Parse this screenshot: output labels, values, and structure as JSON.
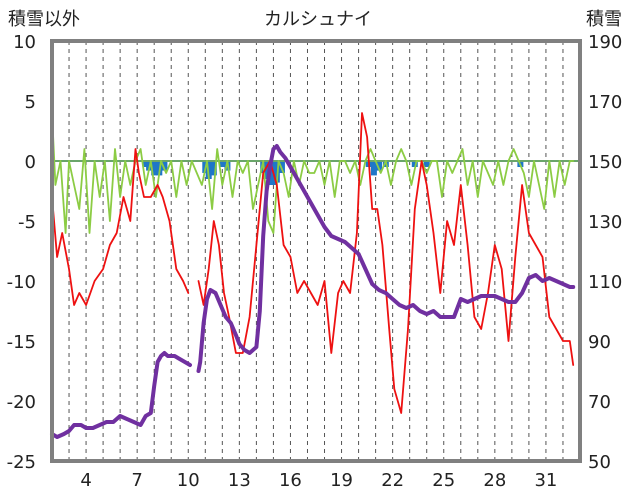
{
  "chart_data": {
    "type": "line",
    "title": "カルシュナイ",
    "left_axis_label": "積雪以外",
    "right_axis_label": "積雪",
    "left_ylim": [
      -25,
      10
    ],
    "left_yticks": [
      "10",
      "5",
      "0",
      "-5",
      "-10",
      "-15",
      "-20",
      "-25"
    ],
    "right_ylim": [
      50,
      190
    ],
    "right_yticks": [
      "190",
      "170",
      "150",
      "130",
      "110",
      "90",
      "70",
      "50"
    ],
    "xlim": [
      2,
      33
    ],
    "xticks": [
      "4",
      "7",
      "10",
      "13",
      "16",
      "19",
      "22",
      "25",
      "28",
      "31"
    ],
    "grid": "vertical-dashed",
    "colors": {
      "temperature": "#ee1111",
      "temp_change": "#8ccc44",
      "precip": "#1f77c8",
      "snow_depth": "#7030a0",
      "zero_line": "#6aa56a",
      "frame": "#808080"
    },
    "series": [
      {
        "axis": "left",
        "style": "line",
        "x": [
          2.0,
          2.3,
          2.6,
          3.0,
          3.3,
          3.6,
          4.0,
          4.5,
          5.0,
          5.4,
          5.8,
          6.2,
          6.6,
          6.9,
          7.1,
          7.4,
          7.8,
          8.2,
          8.5,
          8.9,
          9.3,
          9.7,
          10.0
        ],
        "y": [
          -3,
          -8,
          -6,
          -9,
          -12,
          -11,
          -12,
          -10,
          -9,
          -7,
          -6,
          -3,
          -5,
          1,
          -1,
          -3,
          -3,
          -2,
          -3,
          -5,
          -9,
          -10,
          -11
        ]
      },
      {
        "axis": "left",
        "style": "line",
        "x": [
          10.6,
          10.9,
          11.2,
          11.5,
          11.8,
          12.1,
          12.4,
          12.8,
          13.2,
          13.6,
          14.0,
          14.4,
          14.8,
          15.2,
          15.6,
          16.0,
          16.4,
          16.8,
          17.2,
          17.6,
          18.0,
          18.4,
          18.8,
          19.1,
          19.5,
          19.9,
          20.2,
          20.5,
          20.8,
          21.1,
          21.4,
          21.8,
          22.1,
          22.5,
          22.9,
          23.3,
          23.7,
          24.0,
          24.4,
          24.8,
          25.2,
          25.6,
          26.0,
          26.4,
          26.8,
          27.2,
          27.6,
          28.0,
          28.4,
          28.8,
          29.2,
          29.6,
          30.0,
          30.4,
          30.8,
          31.2,
          31.6,
          32.0,
          32.4,
          32.6
        ],
        "y": [
          -10,
          -12,
          -9,
          -5,
          -7,
          -11,
          -13,
          -16,
          -16,
          -13,
          -7,
          -1,
          0,
          -2,
          -7,
          -8,
          -11,
          -10,
          -11,
          -12,
          -10,
          -16,
          -11,
          -10,
          -11,
          -6,
          4,
          2,
          -4,
          -4,
          -7,
          -14,
          -19,
          -21,
          -14,
          -4,
          0,
          -2,
          -6,
          -11,
          -5,
          -7,
          -2,
          -7,
          -13,
          -14,
          -11,
          -7,
          -9,
          -15,
          -8,
          -2,
          -6,
          -7,
          -8,
          -13,
          -14,
          -15,
          -15,
          -17
        ]
      },
      {
        "axis": "left",
        "style": "line",
        "x": [
          2.0,
          2.2,
          2.5,
          2.8,
          3.0,
          3.3,
          3.6,
          3.9,
          4.2,
          4.5,
          4.8,
          5.1,
          5.4,
          5.7,
          6.0,
          6.3,
          6.6,
          6.9,
          7.2,
          7.5,
          7.8,
          8.1,
          8.4,
          8.7,
          9.0,
          9.3,
          9.6,
          9.9,
          10.2,
          10.5,
          10.8,
          11.1,
          11.4,
          11.7,
          12.0,
          12.3,
          12.6,
          12.9,
          13.2,
          13.5,
          13.8,
          14.1,
          14.4,
          14.7,
          15.0,
          15.3,
          15.6,
          15.9,
          16.2,
          16.5,
          16.8,
          17.1,
          17.4,
          17.7,
          18.0,
          18.3,
          18.6,
          18.9,
          19.2,
          19.5,
          19.8,
          20.1,
          20.4,
          20.7,
          21.0,
          21.3,
          21.6,
          21.9,
          22.2,
          22.5,
          22.8,
          23.1,
          23.4,
          23.7,
          24.0,
          24.3,
          24.6,
          24.9,
          25.2,
          25.5,
          25.8,
          26.1,
          26.4,
          26.7,
          27.0,
          27.3,
          27.6,
          27.9,
          28.2,
          28.5,
          28.8,
          29.1,
          29.4,
          29.7,
          30.0,
          30.3,
          30.6,
          30.9,
          31.2,
          31.5,
          31.8,
          32.1,
          32.4,
          32.6
        ],
        "y": [
          4,
          -2,
          0,
          -6,
          0,
          -2,
          -4,
          1,
          -6,
          0,
          -3,
          0,
          -5,
          1,
          -3,
          0,
          -2,
          0,
          1,
          -2,
          0,
          -3,
          0,
          -1,
          0,
          -3,
          0,
          -2,
          0,
          -1,
          -2,
          0,
          -4,
          1,
          -2,
          0,
          -3,
          0,
          -1,
          0,
          -4,
          -2,
          0,
          -5,
          -6,
          0,
          -1,
          -3,
          0,
          -2,
          0,
          -1,
          -1,
          0,
          -2,
          0,
          -3,
          0,
          0,
          -1,
          0,
          -2,
          0,
          1,
          0,
          -1,
          0,
          -2,
          0,
          1,
          0,
          -2,
          0,
          0,
          -1,
          0,
          0,
          -3,
          0,
          -1,
          0,
          1,
          -2,
          0,
          -3,
          0,
          -1,
          -2,
          0,
          -2,
          0,
          1,
          0,
          -1,
          -3,
          0,
          -2,
          -4,
          0,
          -3,
          0,
          -2,
          0,
          0
        ]
      },
      {
        "axis": "left",
        "style": "bar",
        "x": [
          7.5,
          7.7,
          8.0,
          8.3,
          8.6,
          11.0,
          11.2,
          11.5,
          12.0,
          12.3,
          14.4,
          14.6,
          14.8,
          15.0,
          15.2,
          15.5,
          20.6,
          20.9,
          21.2,
          21.6,
          23.3,
          24.0,
          29.5
        ],
        "y": [
          -0.5,
          -0.8,
          -1.2,
          -1.2,
          -0.8,
          -1.0,
          -1.5,
          -1.2,
          -0.5,
          -0.8,
          -1.0,
          -1.5,
          -2.0,
          -2.0,
          -1.8,
          -1.0,
          -0.5,
          -1.2,
          -0.8,
          -0.5,
          -0.5,
          -0.5,
          -0.5
        ]
      },
      {
        "axis": "right",
        "style": "line",
        "x": [
          2.0,
          2.3,
          2.7,
          3.0,
          3.3,
          3.7,
          4.0,
          4.4,
          4.8,
          5.2,
          5.6,
          6.0,
          6.4,
          6.8,
          7.2,
          7.5,
          7.8,
          8.0,
          8.2,
          8.4,
          8.6,
          8.8,
          9.0,
          9.2,
          9.5,
          9.8,
          10.1
        ],
        "y": [
          59,
          58,
          59,
          60,
          62,
          62,
          61,
          61,
          62,
          63,
          63,
          65,
          64,
          63,
          62,
          65,
          66,
          75,
          83,
          85,
          86,
          85,
          85,
          85,
          84,
          83,
          82
        ]
      },
      {
        "axis": "right",
        "style": "line",
        "x": [
          10.6,
          10.7,
          10.9,
          11.1,
          11.3,
          11.6,
          11.9,
          12.2,
          12.5,
          12.8,
          13.0,
          13.3,
          13.6,
          14.0,
          14.2,
          14.4,
          14.6,
          14.8,
          15.0,
          15.2,
          15.4,
          15.7,
          16.0,
          16.4,
          16.8,
          17.2,
          17.6,
          18.0,
          18.4,
          18.8,
          19.2,
          19.6,
          20.0,
          20.4,
          20.8,
          21.2,
          21.6,
          22.0,
          22.4,
          22.8,
          23.2,
          23.6,
          24.0,
          24.4,
          24.8,
          25.2,
          25.6,
          26.0,
          26.4,
          26.8,
          27.2,
          27.6,
          28.0,
          28.4,
          28.8,
          29.2,
          29.6,
          30.0,
          30.4,
          30.8,
          31.2,
          31.6,
          32.0,
          32.4,
          32.6
        ],
        "y": [
          80,
          83,
          96,
          104,
          107,
          106,
          102,
          98,
          96,
          92,
          89,
          87,
          86,
          88,
          100,
          125,
          140,
          148,
          154,
          155,
          153,
          151,
          148,
          144,
          140,
          136,
          132,
          128,
          125,
          124,
          123,
          121,
          119,
          114,
          109,
          107,
          106,
          104,
          102,
          101,
          102,
          100,
          99,
          100,
          98,
          98,
          98,
          104,
          103,
          104,
          105,
          105,
          105,
          104,
          103,
          103,
          106,
          111,
          112,
          110,
          111,
          110,
          109,
          108,
          108
        ]
      }
    ]
  }
}
